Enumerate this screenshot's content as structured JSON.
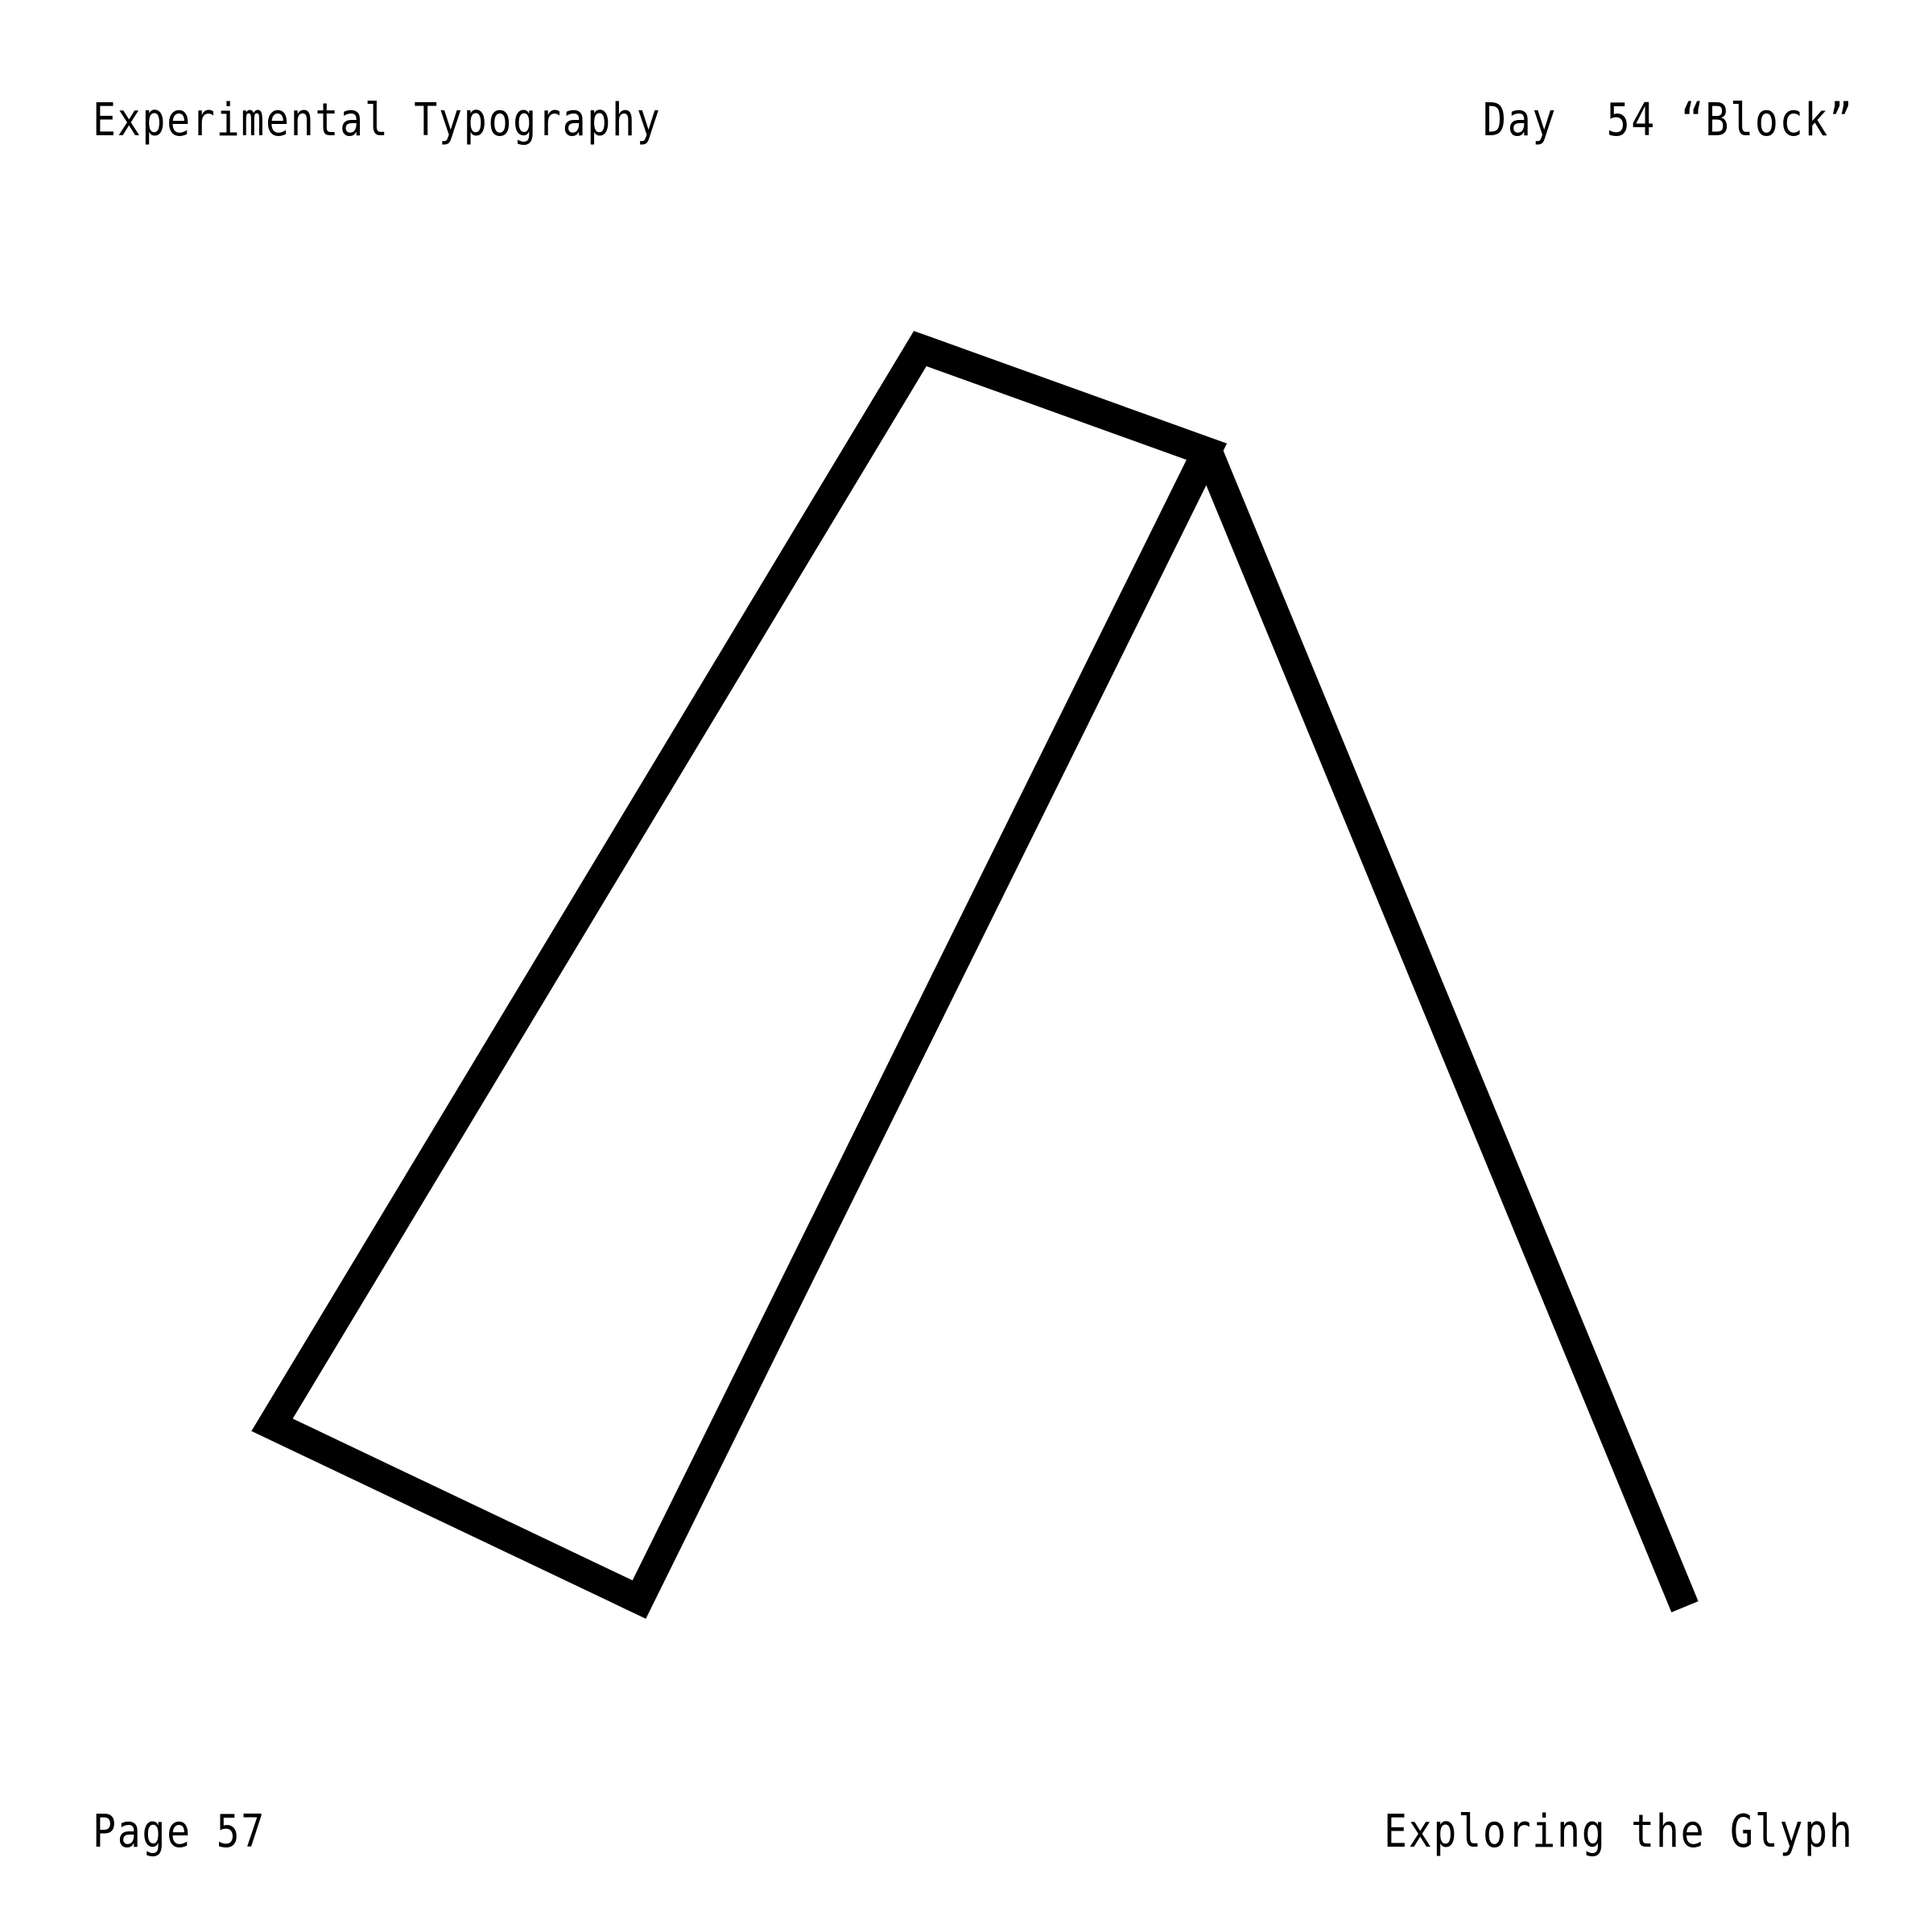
{
  "header": {
    "series_title": "Experimental Typography",
    "day_label": "Day  54 “Block”"
  },
  "footer": {
    "page_label": "Page 57",
    "subtitle": "Exploring the Glyph"
  },
  "glyph": {
    "icon": "abstract-letter-a-block-glyph",
    "stroke_color": "#000000",
    "background_color": "#ffffff"
  }
}
